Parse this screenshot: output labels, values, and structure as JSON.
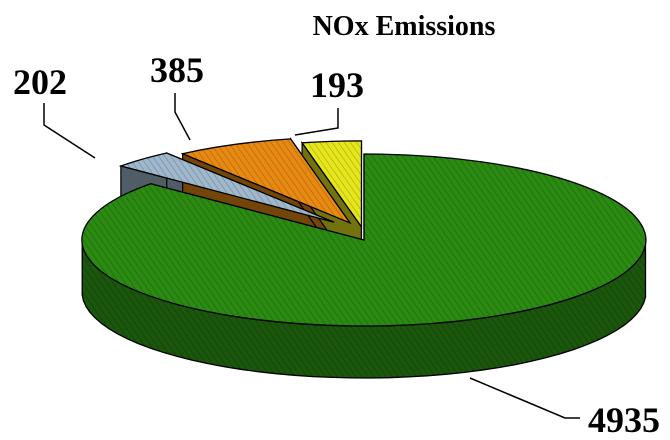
{
  "chart_data": {
    "type": "pie",
    "style": "3d-exploded",
    "title": "NOx Emissions",
    "slices": [
      {
        "label": "4935",
        "value": 4935,
        "color": "#2a8a12"
      },
      {
        "label": "202",
        "value": 202,
        "color": "#9fb8cc"
      },
      {
        "label": "385",
        "value": 385,
        "color": "#e88a12"
      },
      {
        "label": "193",
        "value": 193,
        "color": "#e6e61c"
      }
    ],
    "legend": "none"
  }
}
